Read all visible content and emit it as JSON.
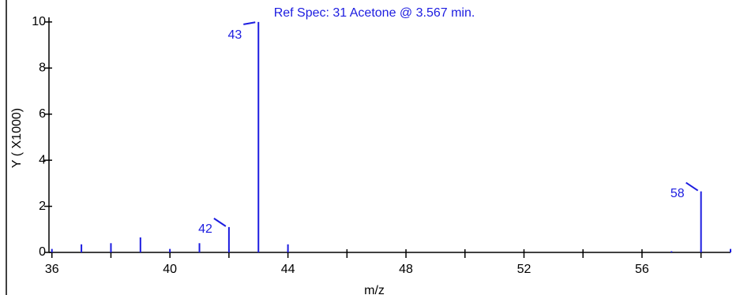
{
  "chart_data": {
    "type": "spectrum",
    "title": "Ref Spec:   31 Acetone @  3.567 min.",
    "x_label": "m/z",
    "y_label": "Y ( X1000)",
    "x": [
      36,
      37,
      38,
      39,
      40,
      41,
      42,
      43,
      44,
      57,
      58,
      59
    ],
    "values": [
      0.15,
      0.35,
      0.4,
      0.65,
      0.15,
      0.4,
      1.1,
      10,
      0.35,
      0.05,
      2.65,
      0.15
    ],
    "labeled_peaks": [
      42,
      43,
      58
    ],
    "color": "#1c1ce0",
    "xlim": [
      35.9,
      59
    ],
    "xticks": [
      36,
      40,
      44,
      48,
      52,
      56
    ],
    "xminor_ticks": [
      38,
      42,
      46,
      50,
      54,
      58
    ],
    "ylim": [
      0,
      10.2
    ],
    "yticks": [
      0,
      2,
      4,
      6,
      8,
      10
    ]
  }
}
